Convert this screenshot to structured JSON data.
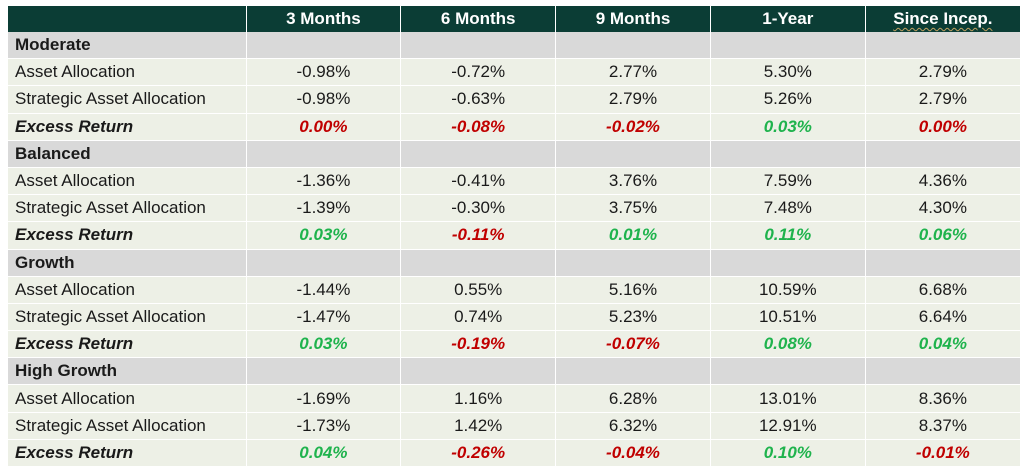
{
  "header": {
    "corner": "",
    "columns": [
      "3 Months",
      "6 Months",
      "9 Months",
      "1-Year",
      "Since Incep."
    ]
  },
  "colors": {
    "header_bg": "#0b3d35",
    "section_bg": "#d9d9d9",
    "row_bg": "#edf0e6",
    "positive": "#1fb34d",
    "negative": "#c00000"
  },
  "groups": [
    {
      "name": "Moderate",
      "rows": [
        {
          "label": "Asset Allocation",
          "values": [
            "-0.98%",
            "-0.72%",
            "2.77%",
            "5.30%",
            "2.79%"
          ]
        },
        {
          "label": "Strategic Asset Allocation",
          "values": [
            "-0.98%",
            "-0.63%",
            "2.79%",
            "5.26%",
            "2.79%"
          ]
        }
      ],
      "excess": {
        "label": "Excess Return",
        "values": [
          "0.00%",
          "-0.08%",
          "-0.02%",
          "0.03%",
          "0.00%"
        ],
        "signs": [
          "neg",
          "neg",
          "neg",
          "pos",
          "neg"
        ]
      }
    },
    {
      "name": "Balanced",
      "rows": [
        {
          "label": "Asset Allocation",
          "values": [
            "-1.36%",
            "-0.41%",
            "3.76%",
            "7.59%",
            "4.36%"
          ]
        },
        {
          "label": "Strategic Asset Allocation",
          "values": [
            "-1.39%",
            "-0.30%",
            "3.75%",
            "7.48%",
            "4.30%"
          ]
        }
      ],
      "excess": {
        "label": "Excess Return",
        "values": [
          "0.03%",
          "-0.11%",
          "0.01%",
          "0.11%",
          "0.06%"
        ],
        "signs": [
          "pos",
          "neg",
          "pos",
          "pos",
          "pos"
        ]
      }
    },
    {
      "name": "Growth",
      "rows": [
        {
          "label": "Asset Allocation",
          "values": [
            "-1.44%",
            "0.55%",
            "5.16%",
            "10.59%",
            "6.68%"
          ]
        },
        {
          "label": "Strategic Asset Allocation",
          "values": [
            "-1.47%",
            "0.74%",
            "5.23%",
            "10.51%",
            "6.64%"
          ]
        }
      ],
      "excess": {
        "label": "Excess Return",
        "values": [
          "0.03%",
          "-0.19%",
          "-0.07%",
          "0.08%",
          "0.04%"
        ],
        "signs": [
          "pos",
          "neg",
          "neg",
          "pos",
          "pos"
        ]
      }
    },
    {
      "name": "High Growth",
      "rows": [
        {
          "label": "Asset Allocation",
          "values": [
            "-1.69%",
            "1.16%",
            "6.28%",
            "13.01%",
            "8.36%"
          ]
        },
        {
          "label": "Strategic Asset Allocation",
          "values": [
            "-1.73%",
            "1.42%",
            "6.32%",
            "12.91%",
            "8.37%"
          ]
        }
      ],
      "excess": {
        "label": "Excess Return",
        "values": [
          "0.04%",
          "-0.26%",
          "-0.04%",
          "0.10%",
          "-0.01%"
        ],
        "signs": [
          "pos",
          "neg",
          "neg",
          "pos",
          "neg"
        ]
      }
    }
  ]
}
